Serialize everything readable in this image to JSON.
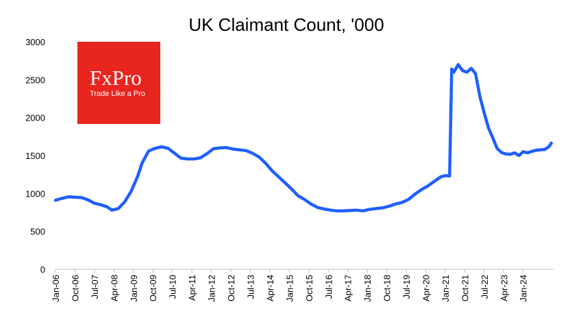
{
  "logo": {
    "brand": "FxPro",
    "tagline": "Trade Like a Pro",
    "color": "#e8251f"
  },
  "chart_data": {
    "type": "line",
    "title": "UK Claimant Count, '000",
    "xlabel": "",
    "ylabel": "",
    "ylim": [
      0,
      3000
    ],
    "yticks": [
      0,
      500,
      1000,
      1500,
      2000,
      2500,
      3000
    ],
    "xticks": [
      "Jan-06",
      "Oct-06",
      "Jul-07",
      "Apr-08",
      "Jan-09",
      "Oct-09",
      "Jul-10",
      "Apr-11",
      "Jan-12",
      "Oct-12",
      "Jul-13",
      "Apr-14",
      "Jan-15",
      "Oct-15",
      "Jul-16",
      "Apr-17",
      "Jan-18",
      "Oct-18",
      "Jul-19",
      "Apr-20",
      "Jan-21",
      "Oct-21",
      "Jul-22",
      "Apr-23",
      "Jan-24"
    ],
    "grid": false,
    "line_color": "#1f5fff",
    "series": [
      {
        "points": [
          [
            "Jan-06",
            910
          ],
          [
            "Apr-06",
            935
          ],
          [
            "Jul-06",
            955
          ],
          [
            "Oct-06",
            950
          ],
          [
            "Jan-07",
            945
          ],
          [
            "Apr-07",
            915
          ],
          [
            "Jul-07",
            870
          ],
          [
            "Oct-07",
            850
          ],
          [
            "Jan-08",
            820
          ],
          [
            "Mar-08",
            780
          ],
          [
            "Jun-08",
            800
          ],
          [
            "Sep-08",
            890
          ],
          [
            "Dec-08",
            1030
          ],
          [
            "Mar-09",
            1230
          ],
          [
            "May-09",
            1400
          ],
          [
            "Aug-09",
            1560
          ],
          [
            "Nov-09",
            1595
          ],
          [
            "Feb-10",
            1615
          ],
          [
            "May-10",
            1595
          ],
          [
            "Aug-10",
            1530
          ],
          [
            "Nov-10",
            1465
          ],
          [
            "Feb-11",
            1455
          ],
          [
            "May-11",
            1455
          ],
          [
            "Aug-11",
            1470
          ],
          [
            "Nov-11",
            1525
          ],
          [
            "Feb-12",
            1590
          ],
          [
            "May-12",
            1600
          ],
          [
            "Aug-12",
            1605
          ],
          [
            "Nov-12",
            1585
          ],
          [
            "Feb-13",
            1575
          ],
          [
            "May-13",
            1565
          ],
          [
            "Aug-13",
            1530
          ],
          [
            "Nov-13",
            1480
          ],
          [
            "Feb-14",
            1400
          ],
          [
            "May-14",
            1300
          ],
          [
            "Aug-14",
            1220
          ],
          [
            "Nov-14",
            1140
          ],
          [
            "Feb-15",
            1060
          ],
          [
            "May-15",
            970
          ],
          [
            "Aug-15",
            920
          ],
          [
            "Nov-15",
            860
          ],
          [
            "Feb-16",
            815
          ],
          [
            "May-16",
            795
          ],
          [
            "Aug-16",
            780
          ],
          [
            "Nov-16",
            770
          ],
          [
            "Feb-17",
            770
          ],
          [
            "May-17",
            775
          ],
          [
            "Aug-17",
            780
          ],
          [
            "Nov-17",
            770
          ],
          [
            "Feb-18",
            790
          ],
          [
            "May-18",
            800
          ],
          [
            "Aug-18",
            810
          ],
          [
            "Nov-18",
            830
          ],
          [
            "Feb-19",
            860
          ],
          [
            "May-19",
            880
          ],
          [
            "Aug-19",
            920
          ],
          [
            "Nov-19",
            990
          ],
          [
            "Feb-20",
            1050
          ],
          [
            "May-20",
            1100
          ],
          [
            "Aug-20",
            1160
          ],
          [
            "Nov-20",
            1220
          ],
          [
            "Jan-21",
            1235
          ],
          [
            "Mar-21",
            1230
          ],
          [
            "Apr-21",
            2640
          ],
          [
            "May-21",
            2600
          ],
          [
            "Jul-21",
            2700
          ],
          [
            "Sep-21",
            2620
          ],
          [
            "Nov-21",
            2600
          ],
          [
            "Jan-22",
            2650
          ],
          [
            "Mar-22",
            2580
          ],
          [
            "May-22",
            2280
          ],
          [
            "Jul-22",
            2060
          ],
          [
            "Sep-22",
            1860
          ],
          [
            "Nov-22",
            1730
          ],
          [
            "Jan-23",
            1590
          ],
          [
            "Mar-23",
            1540
          ],
          [
            "May-23",
            1520
          ],
          [
            "Jul-23",
            1515
          ],
          [
            "Sep-23",
            1535
          ],
          [
            "Nov-23",
            1500
          ],
          [
            "Jan-24",
            1550
          ],
          [
            "Mar-24",
            1535
          ],
          [
            "May-24",
            1555
          ],
          [
            "Jul-24",
            1570
          ],
          [
            "Sep-24",
            1575
          ],
          [
            "Nov-24",
            1580
          ],
          [
            "Jan-25",
            1620
          ],
          [
            "Feb-25",
            1665
          ]
        ]
      }
    ]
  }
}
